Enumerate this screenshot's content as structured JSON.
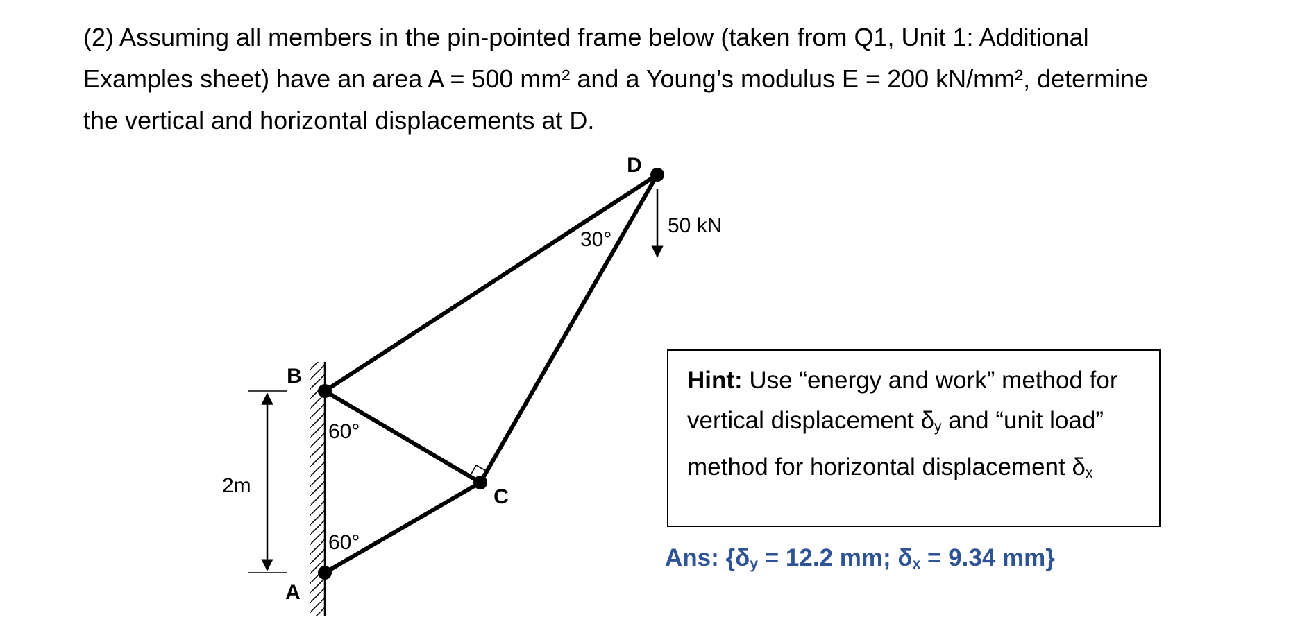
{
  "question": "(2)  Assuming all members in the pin-pointed frame below (taken from Q1, Unit 1: Additional Examples sheet) have an area A = 500 mm² and a Young’s modulus E = 200 kN/mm², determine the vertical and horizontal displacements at D.",
  "diagram": {
    "nodes": {
      "A": "A",
      "B": "B",
      "C": "C",
      "D": "D"
    },
    "angles": [
      "60°",
      "60°",
      "30°"
    ],
    "dimension": "2m",
    "load": "50 kN"
  },
  "hint": {
    "label": "Hint:",
    "text1": " Use “energy and work” method for vertical displacement δ",
    "sub1": "y",
    "text2": " and “unit load” method for horizontal displacement δ",
    "sub2": "x"
  },
  "answer": {
    "part1": "Ans: {δ",
    "sub1": "y",
    "part2": " = 12.2 mm; δ",
    "sub2": "x",
    "part3": " = 9.34 mm}"
  }
}
